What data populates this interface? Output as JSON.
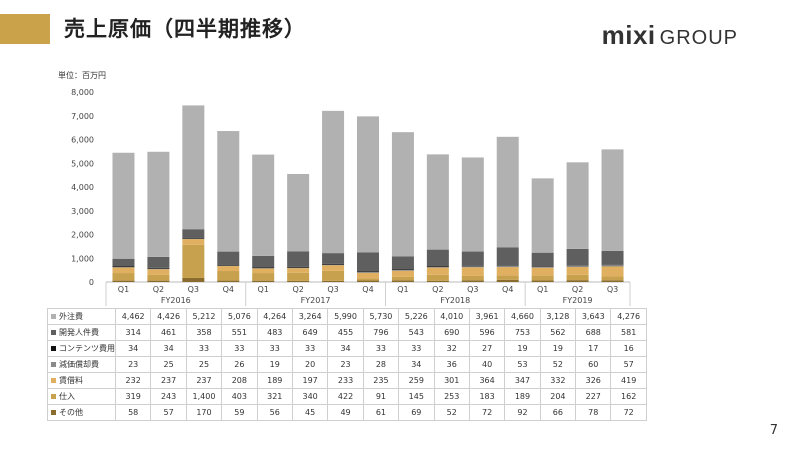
{
  "title": "売上原価（四半期推移）",
  "logo": {
    "main": "mixi",
    "sub": "GROUP"
  },
  "unit_label": "単位：百万円",
  "page_number": "7",
  "colors": {
    "accent": "#c9a24a",
    "外注費": "#b1b1b1",
    "開発人件費": "#5f5f5f",
    "コンテンツ費用": "#111111",
    "減価償却費": "#8a8a8a",
    "賃借料": "#e0b060",
    "仕入": "#c7a14e",
    "その他": "#8a6d2e"
  },
  "chart_data": {
    "type": "bar",
    "stacked": true,
    "ylim": [
      0,
      8000
    ],
    "yticks": [
      "0",
      "1,000",
      "2,000",
      "3,000",
      "4,000",
      "5,000",
      "6,000",
      "7,000",
      "8,000"
    ],
    "categories": [
      "Q1",
      "Q2",
      "Q3",
      "Q4",
      "Q1",
      "Q2",
      "Q3",
      "Q4",
      "Q1",
      "Q2",
      "Q3",
      "Q4",
      "Q1",
      "Q2",
      "Q3"
    ],
    "fiscal_years": [
      {
        "label": "FY2016",
        "count": 4
      },
      {
        "label": "FY2017",
        "count": 4
      },
      {
        "label": "FY2018",
        "count": 4
      },
      {
        "label": "FY2019",
        "count": 3
      }
    ],
    "series": [
      {
        "name": "その他",
        "values": [
          58,
          57,
          170,
          59,
          56,
          45,
          49,
          61,
          69,
          52,
          72,
          92,
          66,
          78,
          72
        ]
      },
      {
        "name": "仕入",
        "values": [
          319,
          243,
          1400,
          403,
          321,
          340,
          422,
          91,
          145,
          253,
          183,
          189,
          204,
          227,
          162
        ]
      },
      {
        "name": "賃借料",
        "values": [
          232,
          237,
          237,
          208,
          189,
          197,
          233,
          235,
          259,
          301,
          364,
          347,
          332,
          326,
          419
        ]
      },
      {
        "name": "減価償却費",
        "values": [
          23,
          25,
          25,
          26,
          19,
          20,
          23,
          28,
          34,
          36,
          40,
          53,
          52,
          60,
          57
        ]
      },
      {
        "name": "コンテンツ費用",
        "values": [
          34,
          34,
          33,
          33,
          33,
          33,
          34,
          33,
          33,
          32,
          27,
          19,
          19,
          17,
          16
        ]
      },
      {
        "name": "開発人件費",
        "values": [
          314,
          461,
          358,
          551,
          483,
          649,
          455,
          796,
          543,
          690,
          596,
          753,
          562,
          688,
          581
        ]
      },
      {
        "name": "外注費",
        "values": [
          4462,
          4426,
          5212,
          5076,
          4264,
          3264,
          5990,
          5730,
          5226,
          4010,
          3961,
          4660,
          3128,
          3643,
          4276
        ]
      }
    ],
    "table_rows": [
      {
        "name": "外注費",
        "values": [
          "4,462",
          "4,426",
          "5,212",
          "5,076",
          "4,264",
          "3,264",
          "5,990",
          "5,730",
          "5,226",
          "4,010",
          "3,961",
          "4,660",
          "3,128",
          "3,643",
          "4,276"
        ]
      },
      {
        "name": "開発人件費",
        "values": [
          "314",
          "461",
          "358",
          "551",
          "483",
          "649",
          "455",
          "796",
          "543",
          "690",
          "596",
          "753",
          "562",
          "688",
          "581"
        ]
      },
      {
        "name": "コンテンツ費用",
        "values": [
          "34",
          "34",
          "33",
          "33",
          "33",
          "33",
          "34",
          "33",
          "33",
          "32",
          "27",
          "19",
          "19",
          "17",
          "16"
        ]
      },
      {
        "name": "減価償却費",
        "values": [
          "23",
          "25",
          "25",
          "26",
          "19",
          "20",
          "23",
          "28",
          "34",
          "36",
          "40",
          "53",
          "52",
          "60",
          "57"
        ]
      },
      {
        "name": "賃借料",
        "values": [
          "232",
          "237",
          "237",
          "208",
          "189",
          "197",
          "233",
          "235",
          "259",
          "301",
          "364",
          "347",
          "332",
          "326",
          "419"
        ]
      },
      {
        "name": "仕入",
        "values": [
          "319",
          "243",
          "1,400",
          "403",
          "321",
          "340",
          "422",
          "91",
          "145",
          "253",
          "183",
          "189",
          "204",
          "227",
          "162"
        ]
      },
      {
        "name": "その他",
        "values": [
          "58",
          "57",
          "170",
          "59",
          "56",
          "45",
          "49",
          "61",
          "69",
          "52",
          "72",
          "92",
          "66",
          "78",
          "72"
        ]
      }
    ]
  }
}
